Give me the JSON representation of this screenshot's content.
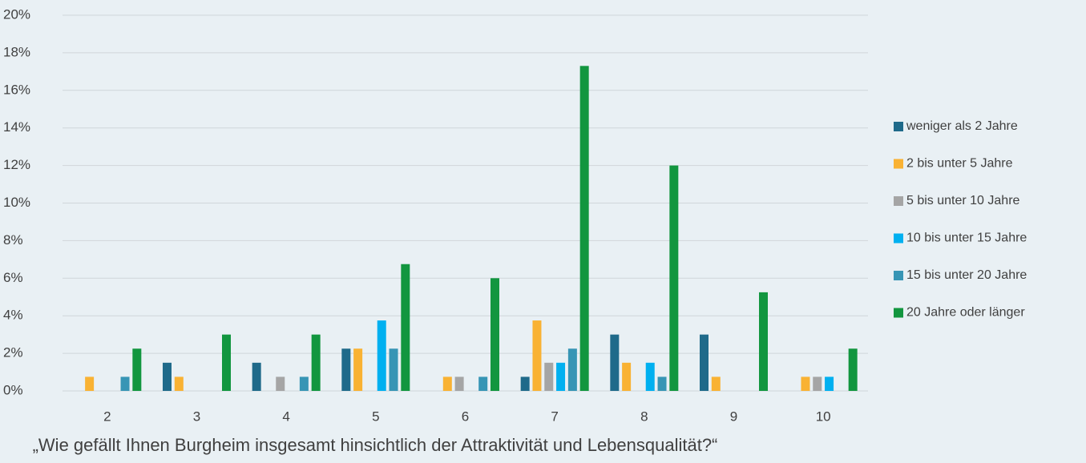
{
  "chart_data": {
    "type": "bar",
    "x_label": "„Wie gefällt Ihnen Burgheim insgesamt hinsichtlich der Attraktivität und Lebensqualität?“",
    "categories": [
      "2",
      "3",
      "4",
      "5",
      "6",
      "7",
      "8",
      "9",
      "10"
    ],
    "series": [
      {
        "name": "weniger als 2 Jahre",
        "color": "#1f6a8a",
        "values": [
          0,
          1.5,
          1.5,
          2.25,
          0,
          0.75,
          3,
          3,
          0
        ]
      },
      {
        "name": "2 bis unter 5 Jahre",
        "color": "#f9b233",
        "values": [
          0.75,
          0.75,
          0,
          2.25,
          0.75,
          3.75,
          1.5,
          0.75,
          0.75
        ]
      },
      {
        "name": "5 bis unter 10 Jahre",
        "color": "#a5a5a5",
        "values": [
          0,
          0,
          0.75,
          0,
          0.75,
          1.5,
          0,
          0,
          0.75
        ]
      },
      {
        "name": "10 bis unter 15 Jahre",
        "color": "#00b0f0",
        "values": [
          0,
          0,
          0,
          3.75,
          0,
          1.5,
          1.5,
          0,
          0.75
        ]
      },
      {
        "name": "15 bis unter 20 Jahre",
        "color": "#3795b5",
        "values": [
          0.75,
          0,
          0.75,
          2.25,
          0.75,
          2.25,
          0.75,
          0,
          0
        ]
      },
      {
        "name": "20 Jahre oder länger",
        "color": "#12963f",
        "values": [
          2.25,
          3,
          3,
          6.75,
          6,
          17.3,
          12,
          5.25,
          2.25
        ]
      }
    ],
    "ylim": [
      0,
      20
    ],
    "yticks": [
      {
        "value": 0,
        "label": "0%"
      },
      {
        "value": 2,
        "label": "2%"
      },
      {
        "value": 4,
        "label": "4%"
      },
      {
        "value": 6,
        "label": "6%"
      },
      {
        "value": 8,
        "label": "8%"
      },
      {
        "value": 10,
        "label": "10%"
      },
      {
        "value": 12,
        "label": "12%"
      },
      {
        "value": 14,
        "label": "14%"
      },
      {
        "value": 16,
        "label": "16%"
      },
      {
        "value": 18,
        "label": "18%"
      },
      {
        "value": 20,
        "label": "20%"
      }
    ],
    "grid": true,
    "legend": "right"
  }
}
